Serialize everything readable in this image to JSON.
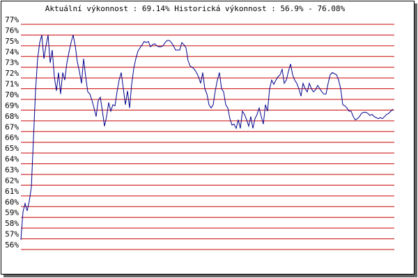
{
  "chart_data": {
    "type": "line",
    "title": "Aktuální výkonnost : 69.14%  Historická výkonnost : 56.9% - 76.08%",
    "ylim": [
      56,
      77
    ],
    "yticks": [
      {
        "value": 77,
        "label": "77%"
      },
      {
        "value": 76,
        "label": "76%"
      },
      {
        "value": 75,
        "label": "75%"
      },
      {
        "value": 74,
        "label": "74%"
      },
      {
        "value": 73,
        "label": "73%"
      },
      {
        "value": 72,
        "label": "72%"
      },
      {
        "value": 71,
        "label": "71%"
      },
      {
        "value": 70,
        "label": "70%"
      },
      {
        "value": 69,
        "label": "69%"
      },
      {
        "value": 68,
        "label": "68%"
      },
      {
        "value": 67,
        "label": "67%"
      },
      {
        "value": 66,
        "label": "66%"
      },
      {
        "value": 65,
        "label": "65%"
      },
      {
        "value": 64,
        "label": "64%"
      },
      {
        "value": 63,
        "label": "63%"
      },
      {
        "value": 62,
        "label": "62%"
      },
      {
        "value": 61,
        "label": "61%"
      },
      {
        "value": 60,
        "label": "60%"
      },
      {
        "value": 59,
        "label": "59%"
      },
      {
        "value": 58,
        "label": "58%"
      },
      {
        "value": 57,
        "label": "57%"
      },
      {
        "value": 56,
        "label": "56%"
      }
    ],
    "grid": true,
    "grid_color": "#cc0000",
    "color": "#00008b",
    "values": [
      56.9,
      59.5,
      60.3,
      59.6,
      60.5,
      61.8,
      66.3,
      70.8,
      73.8,
      75.3,
      76.0,
      73.8,
      75.0,
      76.0,
      73.4,
      74.6,
      72.1,
      70.8,
      72.5,
      70.5,
      72.5,
      71.8,
      73.4,
      74.4,
      75.3,
      76.0,
      75.0,
      73.5,
      72.6,
      71.5,
      73.8,
      72.1,
      70.7,
      70.5,
      69.9,
      69.2,
      68.4,
      69.9,
      70.2,
      68.9,
      67.5,
      68.4,
      69.7,
      68.9,
      69.5,
      69.4,
      70.7,
      71.8,
      72.5,
      71.0,
      69.5,
      70.8,
      69.2,
      71.4,
      72.9,
      73.8,
      74.5,
      74.8,
      75.1,
      75.4,
      75.3,
      75.4,
      74.9,
      75.1,
      75.2,
      75.0,
      74.9,
      74.9,
      75.0,
      75.3,
      75.5,
      75.5,
      75.3,
      75.0,
      74.6,
      74.6,
      74.6,
      75.3,
      75.1,
      74.8,
      73.6,
      73.1,
      73.0,
      72.8,
      72.5,
      72.1,
      71.5,
      72.5,
      71.0,
      70.5,
      69.5,
      69.2,
      69.5,
      70.8,
      71.8,
      72.5,
      71.0,
      70.7,
      69.5,
      69.2,
      68.2,
      67.6,
      67.7,
      67.3,
      68.1,
      67.3,
      68.9,
      68.6,
      68.1,
      67.5,
      68.4,
      67.3,
      68.2,
      68.6,
      69.2,
      68.4,
      67.7,
      69.5,
      68.9,
      71.0,
      71.8,
      71.4,
      71.8,
      72.1,
      72.3,
      72.8,
      71.5,
      71.8,
      72.6,
      73.3,
      72.3,
      71.8,
      71.5,
      71.0,
      70.3,
      71.5,
      71.0,
      70.7,
      71.5,
      71.0,
      70.7,
      70.9,
      71.3,
      71.0,
      70.7,
      70.5,
      70.5,
      71.5,
      72.3,
      72.5,
      72.4,
      72.3,
      71.8,
      71.0,
      69.5,
      69.4,
      69.2,
      68.9,
      68.9,
      68.4,
      68.1,
      68.2,
      68.4,
      68.7,
      68.8,
      68.8,
      68.7,
      68.5,
      68.6,
      68.4,
      68.3,
      68.2,
      68.3,
      68.2,
      68.4,
      68.6,
      68.7,
      68.9,
      69.1
    ]
  }
}
